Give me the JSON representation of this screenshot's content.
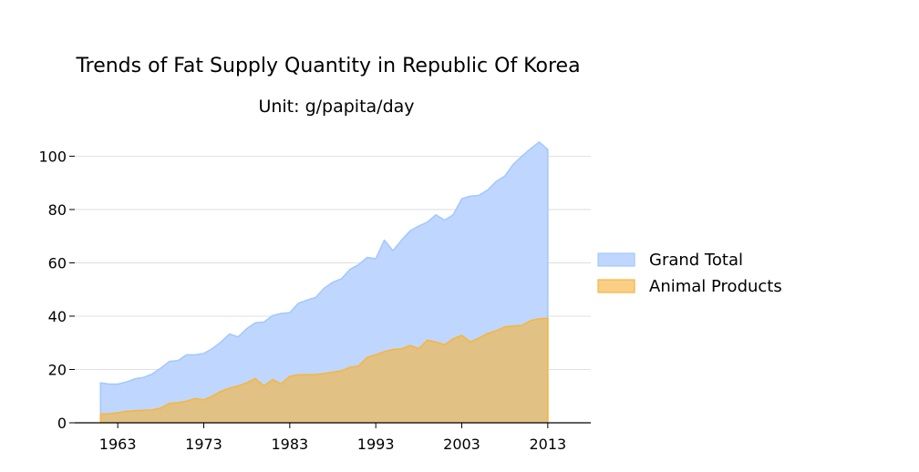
{
  "chart_data": {
    "type": "area",
    "title": "Trends of Fat Supply Quantity in Republic Of Korea",
    "subtitle": "Unit: g/papita/day",
    "xlabel": "",
    "ylabel": "",
    "xlim": [
      1958,
      2018
    ],
    "ylim": [
      0,
      108
    ],
    "xticks": [
      1963,
      1973,
      1983,
      1993,
      2003,
      2013
    ],
    "yticks": [
      0,
      20,
      40,
      60,
      80,
      100
    ],
    "grid": "horizontal",
    "legend_position": "right",
    "x": [
      1961,
      1962,
      1963,
      1964,
      1965,
      1966,
      1967,
      1968,
      1969,
      1970,
      1971,
      1972,
      1973,
      1974,
      1975,
      1976,
      1977,
      1978,
      1979,
      1980,
      1981,
      1982,
      1983,
      1984,
      1985,
      1986,
      1987,
      1988,
      1989,
      1990,
      1991,
      1992,
      1993,
      1994,
      1995,
      1996,
      1997,
      1998,
      1999,
      2000,
      2001,
      2002,
      2003,
      2004,
      2005,
      2006,
      2007,
      2008,
      2009,
      2010,
      2011,
      2012,
      2013
    ],
    "series": [
      {
        "name": "Grand Total",
        "color": "#a4c8ff",
        "fill": "#bfd7ff",
        "values": [
          15,
          14.5,
          14.5,
          15.3,
          16.5,
          17,
          18.3,
          20.5,
          23,
          23.3,
          25.5,
          25.5,
          26,
          27.8,
          30.3,
          33.3,
          32.2,
          35.3,
          37.5,
          37.8,
          40.2,
          41,
          41.3,
          44.8,
          46,
          47,
          50.5,
          52.7,
          54,
          57.5,
          59.3,
          62,
          61.5,
          68.5,
          64.5,
          68.5,
          72,
          73.8,
          75.3,
          78,
          76,
          78,
          84,
          85,
          85.3,
          87.3,
          90.5,
          92.5,
          97,
          100,
          102.8,
          105.3,
          102.5
        ]
      },
      {
        "name": "Animal Products",
        "color": "#f5b642",
        "fill": "rgba(245,182,66,0.65)",
        "values": [
          3.3,
          3.3,
          3.8,
          4.3,
          4.5,
          4.7,
          4.8,
          5.5,
          7.3,
          7.5,
          8.1,
          9.1,
          8.6,
          10,
          11.8,
          13,
          13.8,
          15,
          16.6,
          13.8,
          16.2,
          14.6,
          17.4,
          18,
          18,
          18.1,
          18.5,
          19,
          19.5,
          20.8,
          21.3,
          24.5,
          25.5,
          26.7,
          27.5,
          27.7,
          29,
          27.8,
          31,
          30.3,
          29.3,
          31.5,
          32.8,
          30.3,
          31.8,
          33.5,
          34.5,
          36,
          36.3,
          36.5,
          38.3,
          39,
          39.2
        ]
      }
    ]
  }
}
